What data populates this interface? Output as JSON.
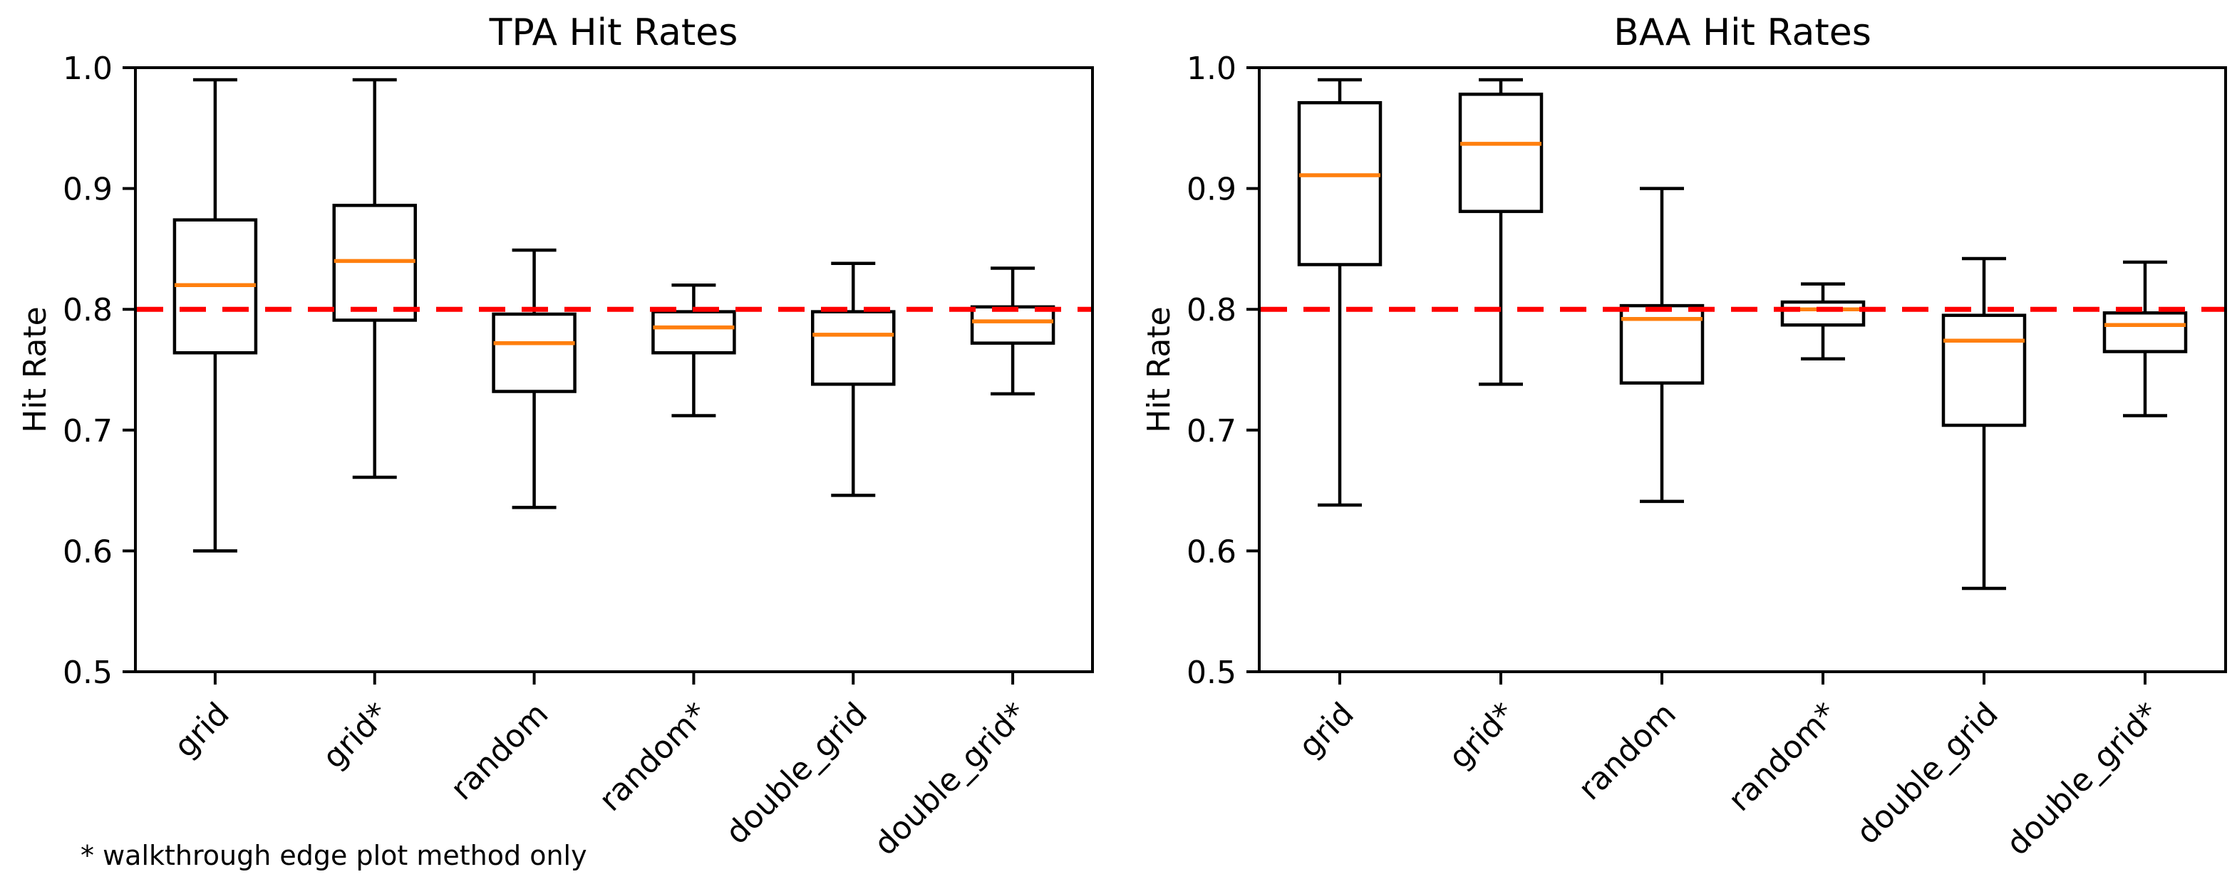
{
  "figure": {
    "footnote": "* walkthrough edge plot method only",
    "colors": {
      "box": "#000000",
      "median": "#ff7f0e",
      "target_line": "#ff0000",
      "text": "#000000",
      "background": "#ffffff"
    },
    "target_line": {
      "value": 0.8,
      "style": "dashed"
    }
  },
  "chart_data": [
    {
      "type": "box",
      "title": "TPA Hit Rates",
      "ylabel": "Hit Rate",
      "ylim": [
        0.5,
        1.0
      ],
      "yticks": [
        1.0,
        0.9,
        0.8,
        0.7,
        0.6,
        0.5
      ],
      "ytick_labels": [
        "1.0",
        "0.9",
        "0.8",
        "0.7",
        "0.6",
        "0.5"
      ],
      "categories": [
        "grid",
        "grid*",
        "random",
        "random*",
        "double_grid",
        "double_grid*"
      ],
      "reference_line": 0.8,
      "legend": "none",
      "grid": false,
      "series": [
        {
          "label": "grid",
          "whislo": 0.6,
          "q1": 0.764,
          "med": 0.82,
          "q3": 0.874,
          "whishi": 0.99
        },
        {
          "label": "grid*",
          "whislo": 0.661,
          "q1": 0.791,
          "med": 0.84,
          "q3": 0.886,
          "whishi": 0.99
        },
        {
          "label": "random",
          "whislo": 0.636,
          "q1": 0.732,
          "med": 0.772,
          "q3": 0.796,
          "whishi": 0.849
        },
        {
          "label": "random*",
          "whislo": 0.712,
          "q1": 0.764,
          "med": 0.785,
          "q3": 0.798,
          "whishi": 0.82
        },
        {
          "label": "double_grid",
          "whislo": 0.646,
          "q1": 0.738,
          "med": 0.779,
          "q3": 0.798,
          "whishi": 0.838
        },
        {
          "label": "double_grid*",
          "whislo": 0.73,
          "q1": 0.772,
          "med": 0.79,
          "q3": 0.802,
          "whishi": 0.834
        }
      ]
    },
    {
      "type": "box",
      "title": "BAA Hit Rates",
      "ylabel": "Hit Rate",
      "ylim": [
        0.5,
        1.0
      ],
      "yticks": [
        1.0,
        0.9,
        0.8,
        0.7,
        0.6,
        0.5
      ],
      "ytick_labels": [
        "1.0",
        "0.9",
        "0.8",
        "0.7",
        "0.6",
        "0.5"
      ],
      "categories": [
        "grid",
        "grid*",
        "random",
        "random*",
        "double_grid",
        "double_grid*"
      ],
      "reference_line": 0.8,
      "legend": "none",
      "grid": false,
      "series": [
        {
          "label": "grid",
          "whislo": 0.638,
          "q1": 0.837,
          "med": 0.911,
          "q3": 0.971,
          "whishi": 0.99
        },
        {
          "label": "grid*",
          "whislo": 0.738,
          "q1": 0.881,
          "med": 0.937,
          "q3": 0.978,
          "whishi": 0.99
        },
        {
          "label": "random",
          "whislo": 0.641,
          "q1": 0.739,
          "med": 0.792,
          "q3": 0.803,
          "whishi": 0.9
        },
        {
          "label": "random*",
          "whislo": 0.759,
          "q1": 0.787,
          "med": 0.8,
          "q3": 0.806,
          "whishi": 0.821
        },
        {
          "label": "double_grid",
          "whislo": 0.569,
          "q1": 0.704,
          "med": 0.774,
          "q3": 0.795,
          "whishi": 0.842
        },
        {
          "label": "double_grid*",
          "whislo": 0.712,
          "q1": 0.765,
          "med": 0.787,
          "q3": 0.797,
          "whishi": 0.839
        }
      ]
    }
  ]
}
